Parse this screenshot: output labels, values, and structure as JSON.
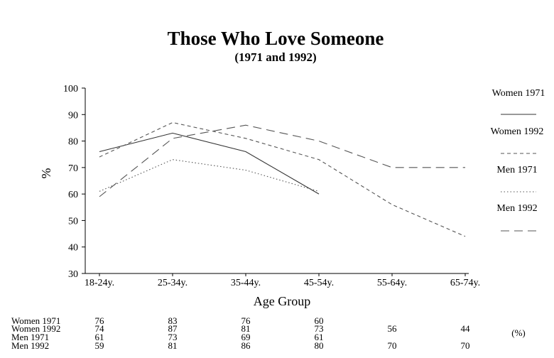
{
  "chart_data": {
    "type": "line",
    "title": "Those Who Love Someone",
    "subtitle": "(1971 and 1992)",
    "xlabel": "Age Group",
    "ylabel": "%",
    "ylim": [
      30,
      100
    ],
    "yticks": [
      30,
      40,
      50,
      60,
      70,
      80,
      90,
      100
    ],
    "categories": [
      "18-24y.",
      "25-34y.",
      "35-44y.",
      "45-54y.",
      "55-64y.",
      "65-74y."
    ],
    "grid": false,
    "legend_position": "right",
    "series": [
      {
        "name": "Women 1971",
        "style": "solid",
        "color": "#333333",
        "values": [
          76,
          83,
          76,
          60,
          null,
          null
        ]
      },
      {
        "name": "Women 1992",
        "style": "dashed-short",
        "color": "#555555",
        "values": [
          74,
          87,
          81,
          73,
          56,
          44
        ]
      },
      {
        "name": "Men 1971",
        "style": "dotted",
        "color": "#555555",
        "values": [
          61,
          73,
          69,
          61,
          null,
          null
        ]
      },
      {
        "name": "Men 1992",
        "style": "dashed-long",
        "color": "#555555",
        "values": [
          59,
          81,
          86,
          80,
          70,
          70
        ]
      }
    ],
    "table": {
      "rows": [
        {
          "label": "Women 1971",
          "values": [
            "76",
            "83",
            "76",
            "60",
            "",
            ""
          ]
        },
        {
          "label": "Women 1992",
          "values": [
            "74",
            "87",
            "81",
            "73",
            "56",
            "44"
          ]
        },
        {
          "label": "Men 1971",
          "values": [
            "61",
            "73",
            "69",
            "61",
            "",
            ""
          ]
        },
        {
          "label": "Men 1992",
          "values": [
            "59",
            "81",
            "86",
            "80",
            "70",
            "70"
          ]
        }
      ],
      "unit_note": "(%)"
    }
  }
}
